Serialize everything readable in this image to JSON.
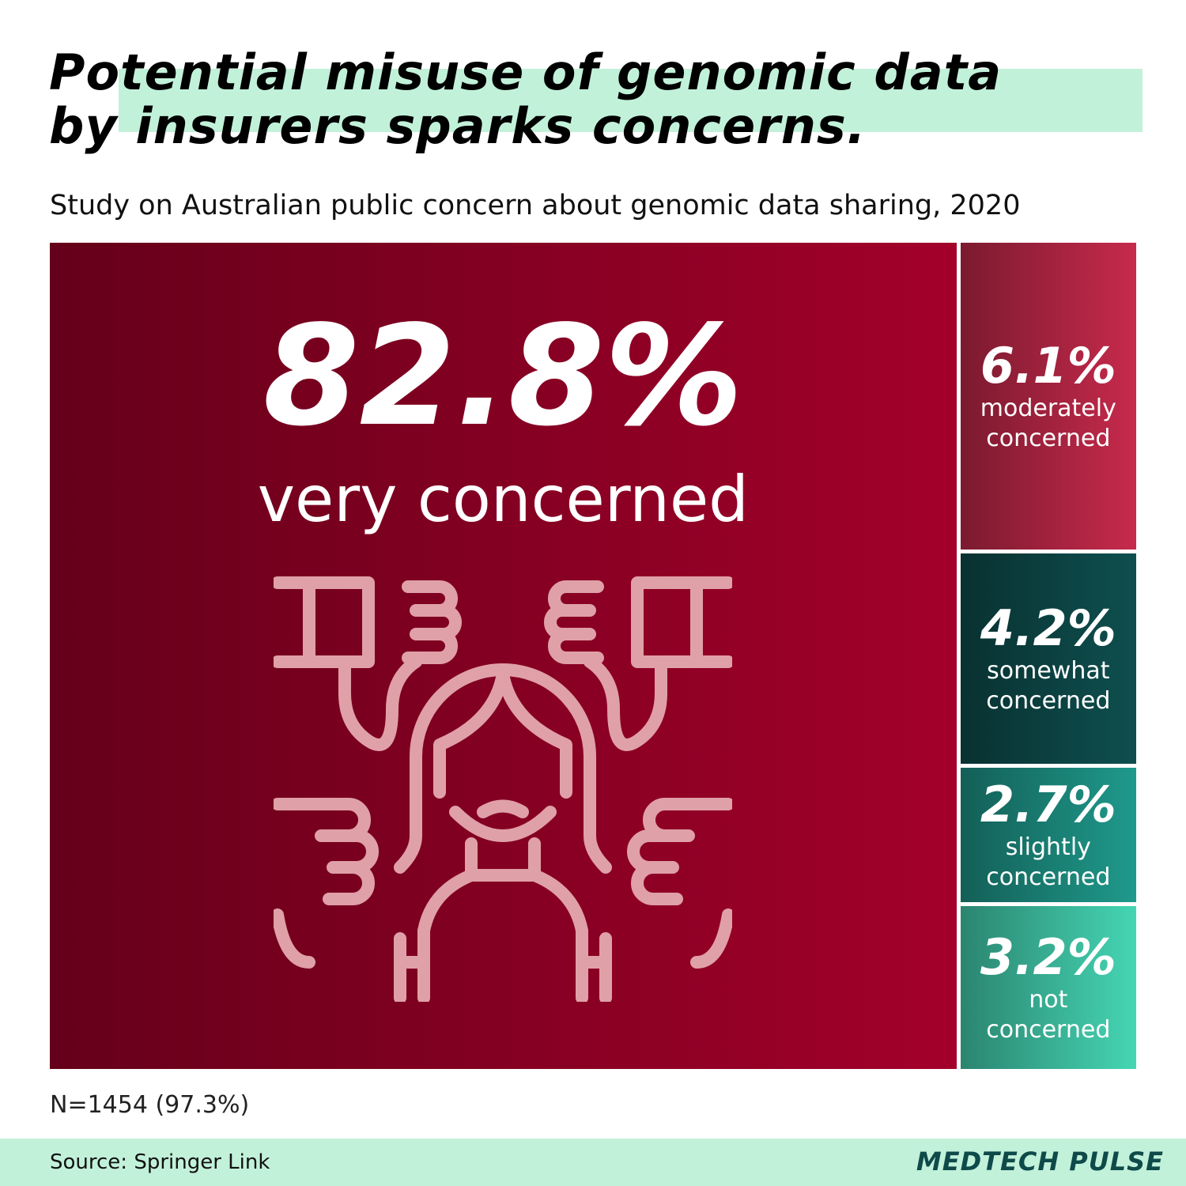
{
  "chart_data": {
    "type": "treemap",
    "title": "Potential misuse of genomic data by insurers sparks concerns.",
    "subtitle": "Study on Australian public concern about genomic data sharing, 2020",
    "categories": [
      "very concerned",
      "moderately concerned",
      "somewhat concerned",
      "slightly concerned",
      "not concerned"
    ],
    "values": [
      82.8,
      6.1,
      4.2,
      2.7,
      3.2
    ],
    "value_labels": [
      "82.8%",
      "6.1%",
      "4.2%",
      "2.7%",
      "3.2%"
    ],
    "colors": [
      "#a3002a",
      "#c72a4c",
      "#0f4f4f",
      "#1f9a8c",
      "#45d6b4"
    ],
    "note": "N=1454 (97.3%)",
    "source": "Source: Springer Link",
    "brand": "MEDTECH PULSE"
  }
}
